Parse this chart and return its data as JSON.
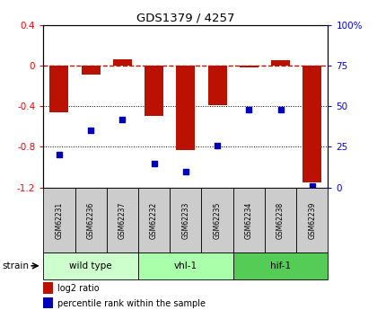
{
  "title": "GDS1379 / 4257",
  "samples": [
    "GSM62231",
    "GSM62236",
    "GSM62237",
    "GSM62232",
    "GSM62233",
    "GSM62235",
    "GSM62234",
    "GSM62238",
    "GSM62239"
  ],
  "log2_ratio": [
    -0.46,
    -0.09,
    0.06,
    -0.5,
    -0.83,
    -0.39,
    -0.02,
    0.05,
    -1.15
  ],
  "percentile_rank": [
    20,
    35,
    42,
    15,
    10,
    26,
    48,
    48,
    1
  ],
  "groups": [
    {
      "label": "wild type",
      "start": 0,
      "end": 3,
      "color": "#ccffcc"
    },
    {
      "label": "vhl-1",
      "start": 3,
      "end": 6,
      "color": "#aaffaa"
    },
    {
      "label": "hif-1",
      "start": 6,
      "end": 9,
      "color": "#55cc55"
    }
  ],
  "ylim_left": [
    -1.2,
    0.4
  ],
  "ylim_right": [
    0,
    100
  ],
  "bar_color": "#bb1100",
  "scatter_color": "#0000bb",
  "right_yticks": [
    0,
    25,
    50,
    75,
    100
  ],
  "right_yticklabels": [
    "0",
    "25",
    "50",
    "75",
    "100%"
  ],
  "left_yticks": [
    -1.2,
    -0.8,
    -0.4,
    0.0,
    0.4
  ],
  "left_yticklabels": [
    "-1.2",
    "-0.8",
    "-0.4",
    "0",
    "0.4"
  ],
  "hline_y": 0.0,
  "dotted_lines": [
    -0.4,
    -0.8
  ],
  "strain_label": "strain",
  "legend_items": [
    {
      "label": "log2 ratio",
      "color": "#bb1100"
    },
    {
      "label": "percentile rank within the sample",
      "color": "#0000bb"
    }
  ]
}
